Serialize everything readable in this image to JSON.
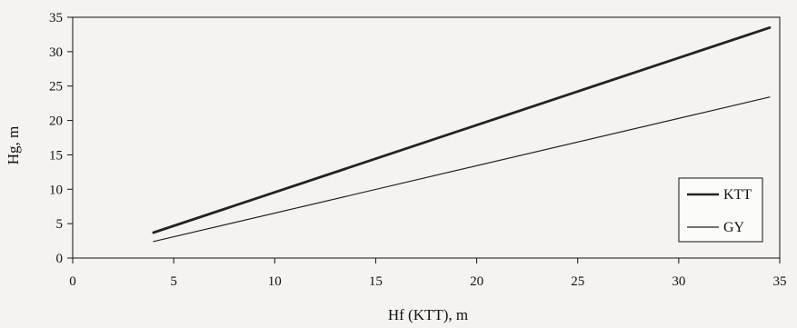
{
  "chart_data": {
    "type": "line",
    "title": "",
    "xlabel": "Hf (KTT), m",
    "ylabel": "Hg, m",
    "xlim": [
      0,
      35
    ],
    "ylim": [
      0,
      35
    ],
    "xticks": [
      "0",
      "5",
      "10",
      "15",
      "20",
      "25",
      "30",
      "35"
    ],
    "yticks": [
      "0",
      "5",
      "10",
      "15",
      "20",
      "25",
      "30",
      "35"
    ],
    "grid": false,
    "legend_position": "bottom-right",
    "series": [
      {
        "name": "KTT",
        "x": [
          4,
          34.5
        ],
        "y": [
          3.7,
          33.5
        ],
        "line": "thick"
      },
      {
        "name": "GY",
        "x": [
          4,
          34.5
        ],
        "y": [
          2.4,
          23.4
        ],
        "line": "thin"
      }
    ]
  }
}
